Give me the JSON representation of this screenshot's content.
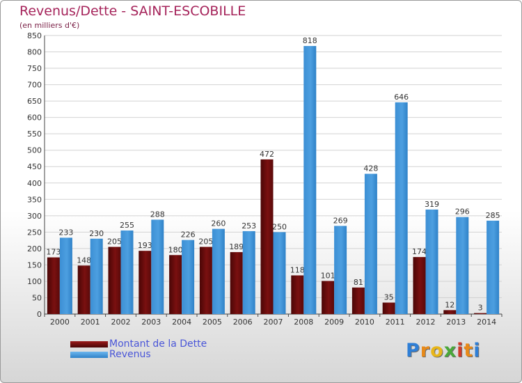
{
  "title": "Revenus/Dette - SAINT-ESCOBILLE",
  "subtitle": "(en milliers d'€)",
  "brand": {
    "text": "Proxiti",
    "letters": [
      "P",
      "r",
      "o",
      "x",
      "i",
      "t",
      "i"
    ],
    "letter_colors": [
      "#2f7fd6",
      "#e88a19",
      "#e8b61a",
      "#4aa83a",
      "#d03a2a",
      "#e88a19",
      "#2f7fd6"
    ]
  },
  "colors": {
    "dette": "#7a1010",
    "revenus": "#4d9fe0",
    "grid": "#d2d2d2"
  },
  "chart_data": {
    "type": "bar",
    "categories": [
      "2000",
      "2001",
      "2002",
      "2003",
      "2004",
      "2005",
      "2006",
      "2007",
      "2008",
      "2009",
      "2010",
      "2011",
      "2012",
      "2013",
      "2014"
    ],
    "series": [
      {
        "name": "Montant de la Dette",
        "values": [
          173,
          148,
          205,
          193,
          180,
          205,
          189,
          472,
          118,
          101,
          81,
          35,
          174,
          12,
          3
        ]
      },
      {
        "name": "Revenus",
        "values": [
          233,
          230,
          255,
          288,
          226,
          260,
          253,
          250,
          818,
          269,
          428,
          646,
          319,
          296,
          285
        ]
      }
    ],
    "data_labels": [
      [
        "173",
        "148",
        "205",
        "193",
        "180",
        "205",
        "189",
        "472",
        "118",
        "101",
        "81",
        "35",
        "174",
        "12",
        "3"
      ],
      [
        "233",
        "230",
        "255",
        "288",
        "226",
        "260",
        "253",
        "250",
        "818",
        "269",
        "428",
        "646",
        "319",
        "296",
        "285"
      ]
    ],
    "ylim": [
      0,
      850
    ],
    "yticks": [
      0,
      50,
      100,
      150,
      200,
      250,
      300,
      350,
      400,
      450,
      500,
      550,
      600,
      650,
      700,
      750,
      800,
      850
    ],
    "grid": true,
    "legend_position": "bottom-left"
  }
}
